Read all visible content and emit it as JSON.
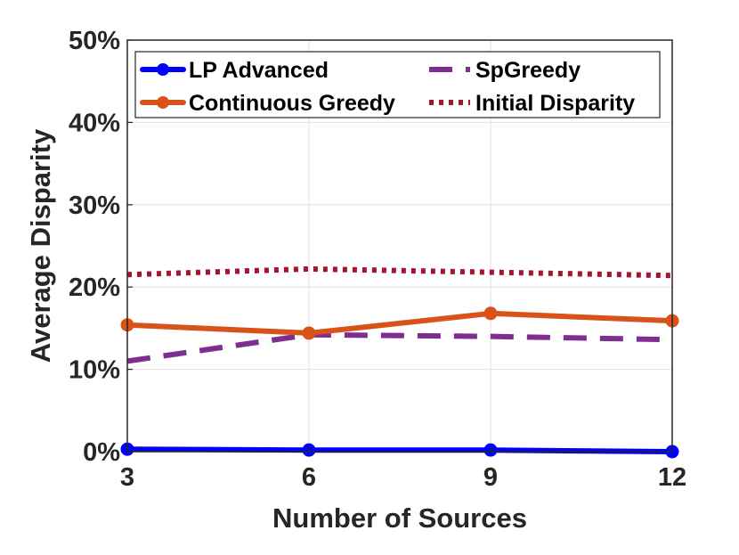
{
  "chart_data": {
    "type": "line",
    "title": "",
    "xlabel": "Number of Sources",
    "ylabel": "Average Disparity",
    "x": [
      3,
      6,
      9,
      12
    ],
    "x_ticks": [
      "3",
      "6",
      "9",
      "12"
    ],
    "ylim": [
      0,
      50
    ],
    "y_ticks": [
      "0%",
      "10%",
      "20%",
      "30%",
      "40%",
      "50%"
    ],
    "grid": true,
    "legend_position": "top",
    "series": [
      {
        "name": "LP Advanced",
        "values": [
          0.3,
          0.2,
          0.2,
          0.0
        ],
        "color": "#0000ff",
        "style": "solid",
        "marker": "circle"
      },
      {
        "name": "SpGreedy",
        "values": [
          11.0,
          14.2,
          14.0,
          13.6
        ],
        "color": "#7e2f8e",
        "style": "dashed",
        "marker": "none"
      },
      {
        "name": "Continuous Greedy",
        "values": [
          15.4,
          14.4,
          16.8,
          15.9
        ],
        "color": "#d95319",
        "style": "solid",
        "marker": "circle"
      },
      {
        "name": "Initial Disparity",
        "values": [
          21.5,
          22.2,
          21.8,
          21.4
        ],
        "color": "#a2142f",
        "style": "dotted",
        "marker": "none"
      }
    ]
  }
}
